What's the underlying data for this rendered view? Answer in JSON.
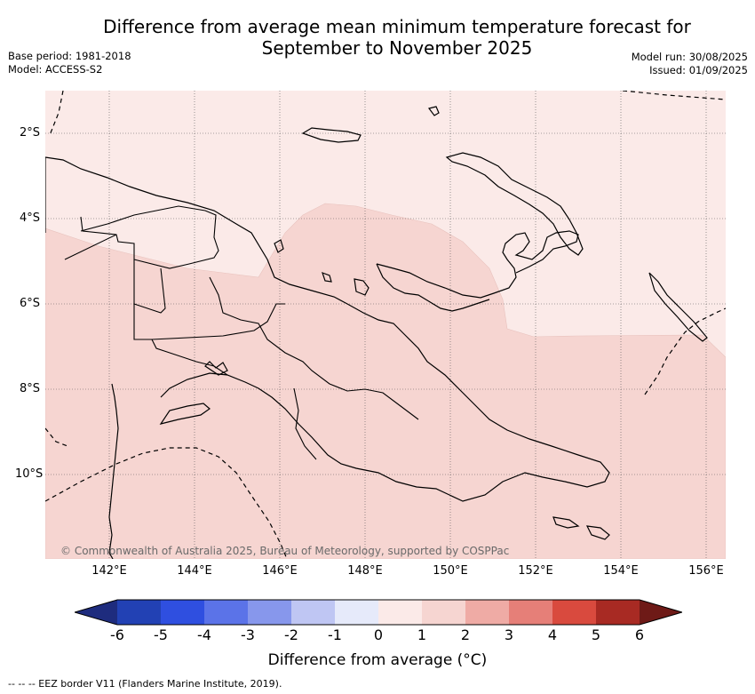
{
  "title_line1": "Difference from average mean minimum temperature forecast for",
  "title_line2": "September to November 2025",
  "base_period": "Base period: 1981-2018",
  "model": "Model: ACCESS-S2",
  "model_run": "Model run: 30/08/2025",
  "issued": "Issued: 01/09/2025",
  "lat_ticks": [
    "2°S",
    "4°S",
    "6°S",
    "8°S",
    "10°S"
  ],
  "lon_ticks": [
    "142°E",
    "144°E",
    "146°E",
    "148°E",
    "150°E",
    "152°E",
    "154°E",
    "156°E"
  ],
  "copyright": "© Commonwealth of Australia 2025, Bureau of Meteorology, supported by COSPPac",
  "colorbar": {
    "ticks": [
      "-6",
      "-5",
      "-4",
      "-3",
      "-2",
      "-1",
      "0",
      "1",
      "2",
      "3",
      "4",
      "5",
      "6"
    ],
    "title": "Difference from average (°C)",
    "colors": [
      "#1e2c7e",
      "#2241b4",
      "#2f4fe0",
      "#5b73e8",
      "#8797ec",
      "#bfc6f3",
      "#e6eafa",
      "#fbeae8",
      "#f6d5d1",
      "#efaba5",
      "#e67f78",
      "#d94a3e",
      "#a82a23",
      "#6e1a17"
    ]
  },
  "map_fills": {
    "zero_to_one": "#fbeae8",
    "one_to_two": "#f6d5d1",
    "land_border": "#000000"
  },
  "footnote": "--  --  -- EEZ border V11 (Flanders Marine Institute, 2019)."
}
